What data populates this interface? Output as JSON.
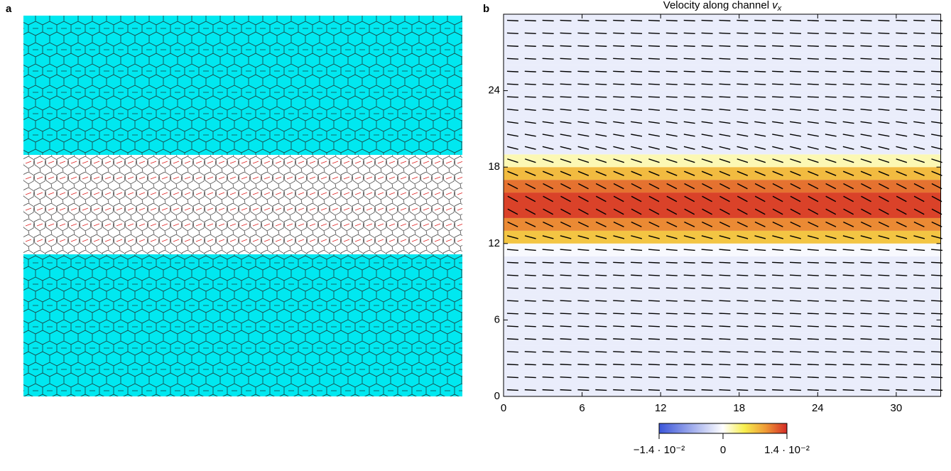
{
  "panel_labels": [
    "a",
    "b"
  ],
  "chart_data": {
    "type": "heatmap",
    "title": "Velocity along channel",
    "title_symbol": "v",
    "title_subscript": "x",
    "xlim": [
      0,
      33.4
    ],
    "ylim": [
      0,
      30
    ],
    "xticks": [
      0,
      6,
      12,
      18,
      24,
      30
    ],
    "yticks": [
      0,
      6,
      12,
      18,
      24
    ],
    "rows_y": [
      0,
      1,
      2,
      3,
      4,
      5,
      6,
      7,
      8,
      9,
      10,
      11,
      12,
      13,
      14,
      15,
      16,
      17,
      18,
      19,
      20,
      21,
      22,
      23,
      24,
      25,
      26,
      27,
      28,
      29
    ],
    "values": [
      -0.0015,
      -0.0015,
      -0.0015,
      -0.0015,
      -0.0015,
      -0.0015,
      -0.0015,
      -0.0015,
      -0.0015,
      -0.0015,
      -0.0015,
      -0.0005,
      0.007,
      0.01,
      0.013,
      0.013,
      0.011,
      0.0075,
      0.002,
      -0.0015,
      -0.0015,
      -0.0015,
      -0.0015,
      -0.0015,
      -0.0015,
      -0.0015,
      -0.0015,
      -0.0015,
      -0.0015,
      -0.0015
    ],
    "colors": [
      "#3b55d9",
      "#ffffff",
      "#f7ef4f",
      "#ef9a36",
      "#d42a26"
    ],
    "director": {
      "x": [
        0.7,
        2.05,
        3.4,
        4.75,
        6.1,
        7.45,
        8.8,
        10.15,
        11.5,
        12.85,
        14.2,
        15.55,
        16.9,
        18.25,
        19.6,
        20.95,
        22.3,
        23.65,
        25.0,
        26.35,
        27.7,
        29.05,
        30.4,
        31.75,
        33.1
      ],
      "y": [
        0.5,
        1.5,
        2.5,
        3.5,
        4.5,
        5.5,
        6.5,
        7.5,
        8.5,
        9.5,
        10.5,
        11.5,
        12.5,
        13.5,
        14.5,
        15.5,
        16.5,
        17.5,
        18.5,
        19.5,
        20.5,
        21.5,
        22.5,
        23.5,
        24.5,
        25.5,
        26.5,
        27.5,
        28.5,
        29.5
      ],
      "angles": [
        -3,
        -3,
        -3,
        -3,
        -3,
        -3,
        -3,
        -3,
        -3,
        -3,
        -3,
        -5,
        -15,
        -25,
        -28,
        -28,
        -27,
        -22,
        -18,
        -14,
        -10,
        -8,
        -6,
        -3,
        -3,
        -3,
        -3,
        -3,
        -3,
        -3
      ]
    },
    "colorbar": {
      "lim": [
        -0.014,
        0.014
      ],
      "ticks": [
        {
          "value": -0.014,
          "label": "−1.4 · 10⁻²"
        },
        0,
        {
          "value": 0.014,
          "label": "1.4 · 10⁻²"
        }
      ]
    }
  }
}
